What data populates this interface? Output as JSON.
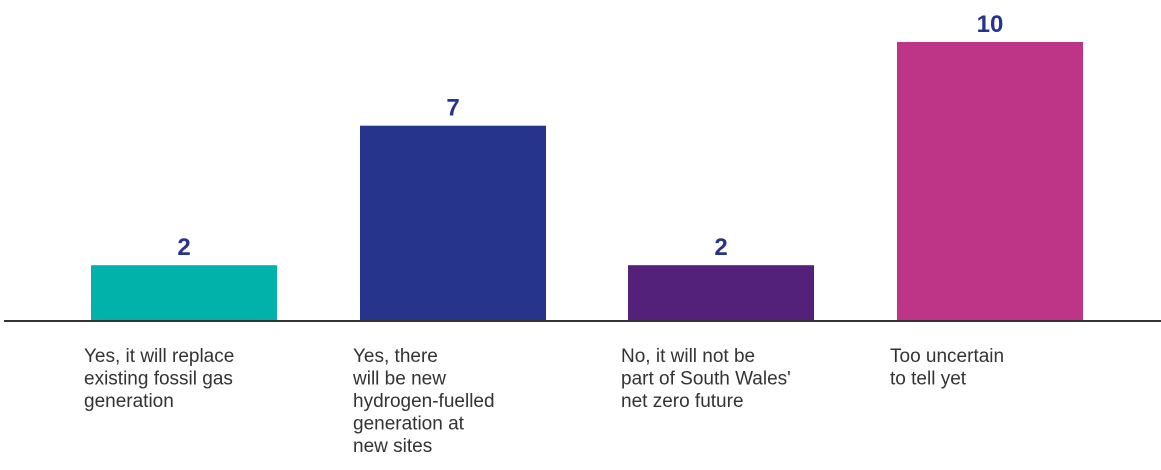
{
  "chart_data": {
    "type": "bar",
    "title": "",
    "xlabel": "",
    "ylabel": "",
    "categories": [
      [
        "Yes, it will replace",
        "existing fossil gas",
        "generation"
      ],
      [
        "Yes, there",
        "will be new",
        "hydrogen-fuelled",
        "generation at",
        "new sites"
      ],
      [
        "No, it will not be",
        "part of South Wales'",
        "net zero future"
      ],
      [
        "Too uncertain",
        "to tell yet"
      ]
    ],
    "values": [
      2,
      7,
      2,
      10
    ],
    "value_labels": [
      "2",
      "7",
      "2",
      "10"
    ],
    "ylim": [
      0,
      10
    ],
    "grid": false,
    "legend": "none",
    "colors": {
      "bars": [
        "#00b2a9",
        "#27348b",
        "#54217a",
        "#be3588"
      ],
      "value_label": "#27348b",
      "category_label": "#333333",
      "baseline": "#333333"
    }
  }
}
